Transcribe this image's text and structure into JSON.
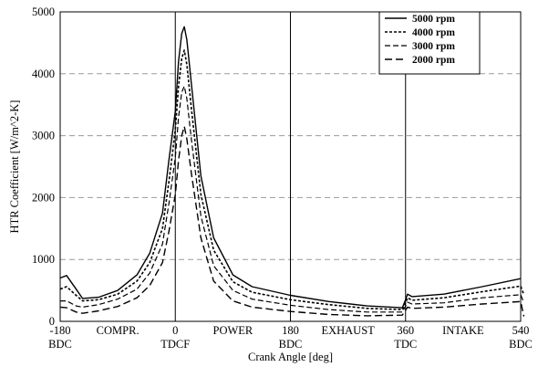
{
  "chart_data": {
    "type": "line",
    "title": "",
    "xlabel": "Crank Angle [deg]",
    "ylabel": "HTR Coefficient [W/m^2-K]",
    "xlim": [
      -180,
      540
    ],
    "ylim": [
      0,
      5000
    ],
    "x_ticks": [
      -180,
      0,
      180,
      360,
      540
    ],
    "y_ticks": [
      0,
      1000,
      2000,
      3000,
      4000,
      5000
    ],
    "grid": "horizontal dashed",
    "legend_position": "top-right",
    "stroke_labels": [
      "BDC",
      "TDCF",
      "BDC",
      "TDC",
      "BDC"
    ],
    "phase_labels": [
      "COMPR.",
      "POWER",
      "EXHAUST",
      "INTAKE"
    ],
    "series": [
      {
        "name": "5000 rpm",
        "style": "solid",
        "points": [
          [
            -180,
            700
          ],
          [
            -170,
            740
          ],
          [
            -155,
            520
          ],
          [
            -145,
            370
          ],
          [
            -120,
            390
          ],
          [
            -90,
            500
          ],
          [
            -60,
            750
          ],
          [
            -40,
            1100
          ],
          [
            -20,
            1750
          ],
          [
            -10,
            2600
          ],
          [
            0,
            3400
          ],
          [
            5,
            4200
          ],
          [
            10,
            4650
          ],
          [
            14,
            4760
          ],
          [
            18,
            4550
          ],
          [
            25,
            3850
          ],
          [
            40,
            2350
          ],
          [
            60,
            1350
          ],
          [
            90,
            750
          ],
          [
            120,
            560
          ],
          [
            180,
            420
          ],
          [
            240,
            320
          ],
          [
            300,
            250
          ],
          [
            355,
            220
          ],
          [
            360,
            350
          ],
          [
            363,
            440
          ],
          [
            370,
            400
          ],
          [
            420,
            440
          ],
          [
            480,
            560
          ],
          [
            540,
            690
          ]
        ]
      },
      {
        "name": "4000 rpm",
        "style": "dashed",
        "points": [
          [
            -180,
            520
          ],
          [
            -170,
            560
          ],
          [
            -155,
            420
          ],
          [
            -145,
            330
          ],
          [
            -120,
            350
          ],
          [
            -90,
            440
          ],
          [
            -60,
            650
          ],
          [
            -40,
            950
          ],
          [
            -20,
            1500
          ],
          [
            -10,
            2250
          ],
          [
            0,
            3100
          ],
          [
            5,
            3800
          ],
          [
            10,
            4250
          ],
          [
            14,
            4380
          ],
          [
            18,
            4150
          ],
          [
            25,
            3450
          ],
          [
            40,
            2050
          ],
          [
            60,
            1150
          ],
          [
            90,
            640
          ],
          [
            120,
            470
          ],
          [
            180,
            350
          ],
          [
            240,
            270
          ],
          [
            300,
            210
          ],
          [
            355,
            190
          ],
          [
            360,
            300
          ],
          [
            363,
            380
          ],
          [
            370,
            340
          ],
          [
            420,
            380
          ],
          [
            480,
            480
          ],
          [
            540,
            570
          ],
          [
            545,
            430
          ]
        ]
      },
      {
        "name": "3000 rpm",
        "style": "dashed",
        "points": [
          [
            -180,
            330
          ],
          [
            -170,
            330
          ],
          [
            -155,
            250
          ],
          [
            -145,
            230
          ],
          [
            -120,
            270
          ],
          [
            -90,
            360
          ],
          [
            -60,
            520
          ],
          [
            -40,
            780
          ],
          [
            -20,
            1250
          ],
          [
            -10,
            1900
          ],
          [
            0,
            2650
          ],
          [
            5,
            3300
          ],
          [
            10,
            3700
          ],
          [
            14,
            3800
          ],
          [
            18,
            3600
          ],
          [
            25,
            2950
          ],
          [
            40,
            1700
          ],
          [
            60,
            900
          ],
          [
            90,
            500
          ],
          [
            120,
            360
          ],
          [
            180,
            260
          ],
          [
            240,
            190
          ],
          [
            300,
            150
          ],
          [
            355,
            150
          ],
          [
            360,
            250
          ],
          [
            363,
            310
          ],
          [
            370,
            280
          ],
          [
            420,
            300
          ],
          [
            480,
            380
          ],
          [
            540,
            430
          ],
          [
            545,
            300
          ]
        ]
      },
      {
        "name": "2000 rpm",
        "style": "long-dash",
        "points": [
          [
            -180,
            230
          ],
          [
            -170,
            220
          ],
          [
            -155,
            150
          ],
          [
            -145,
            130
          ],
          [
            -120,
            170
          ],
          [
            -90,
            240
          ],
          [
            -60,
            380
          ],
          [
            -40,
            580
          ],
          [
            -20,
            950
          ],
          [
            -10,
            1450
          ],
          [
            0,
            2050
          ],
          [
            5,
            2600
          ],
          [
            10,
            3000
          ],
          [
            14,
            3150
          ],
          [
            18,
            2950
          ],
          [
            25,
            2400
          ],
          [
            40,
            1350
          ],
          [
            60,
            650
          ],
          [
            90,
            330
          ],
          [
            120,
            230
          ],
          [
            180,
            160
          ],
          [
            240,
            110
          ],
          [
            300,
            90
          ],
          [
            355,
            100
          ],
          [
            360,
            180
          ],
          [
            363,
            230
          ],
          [
            370,
            210
          ],
          [
            420,
            230
          ],
          [
            480,
            280
          ],
          [
            540,
            320
          ],
          [
            545,
            80
          ]
        ]
      }
    ]
  }
}
